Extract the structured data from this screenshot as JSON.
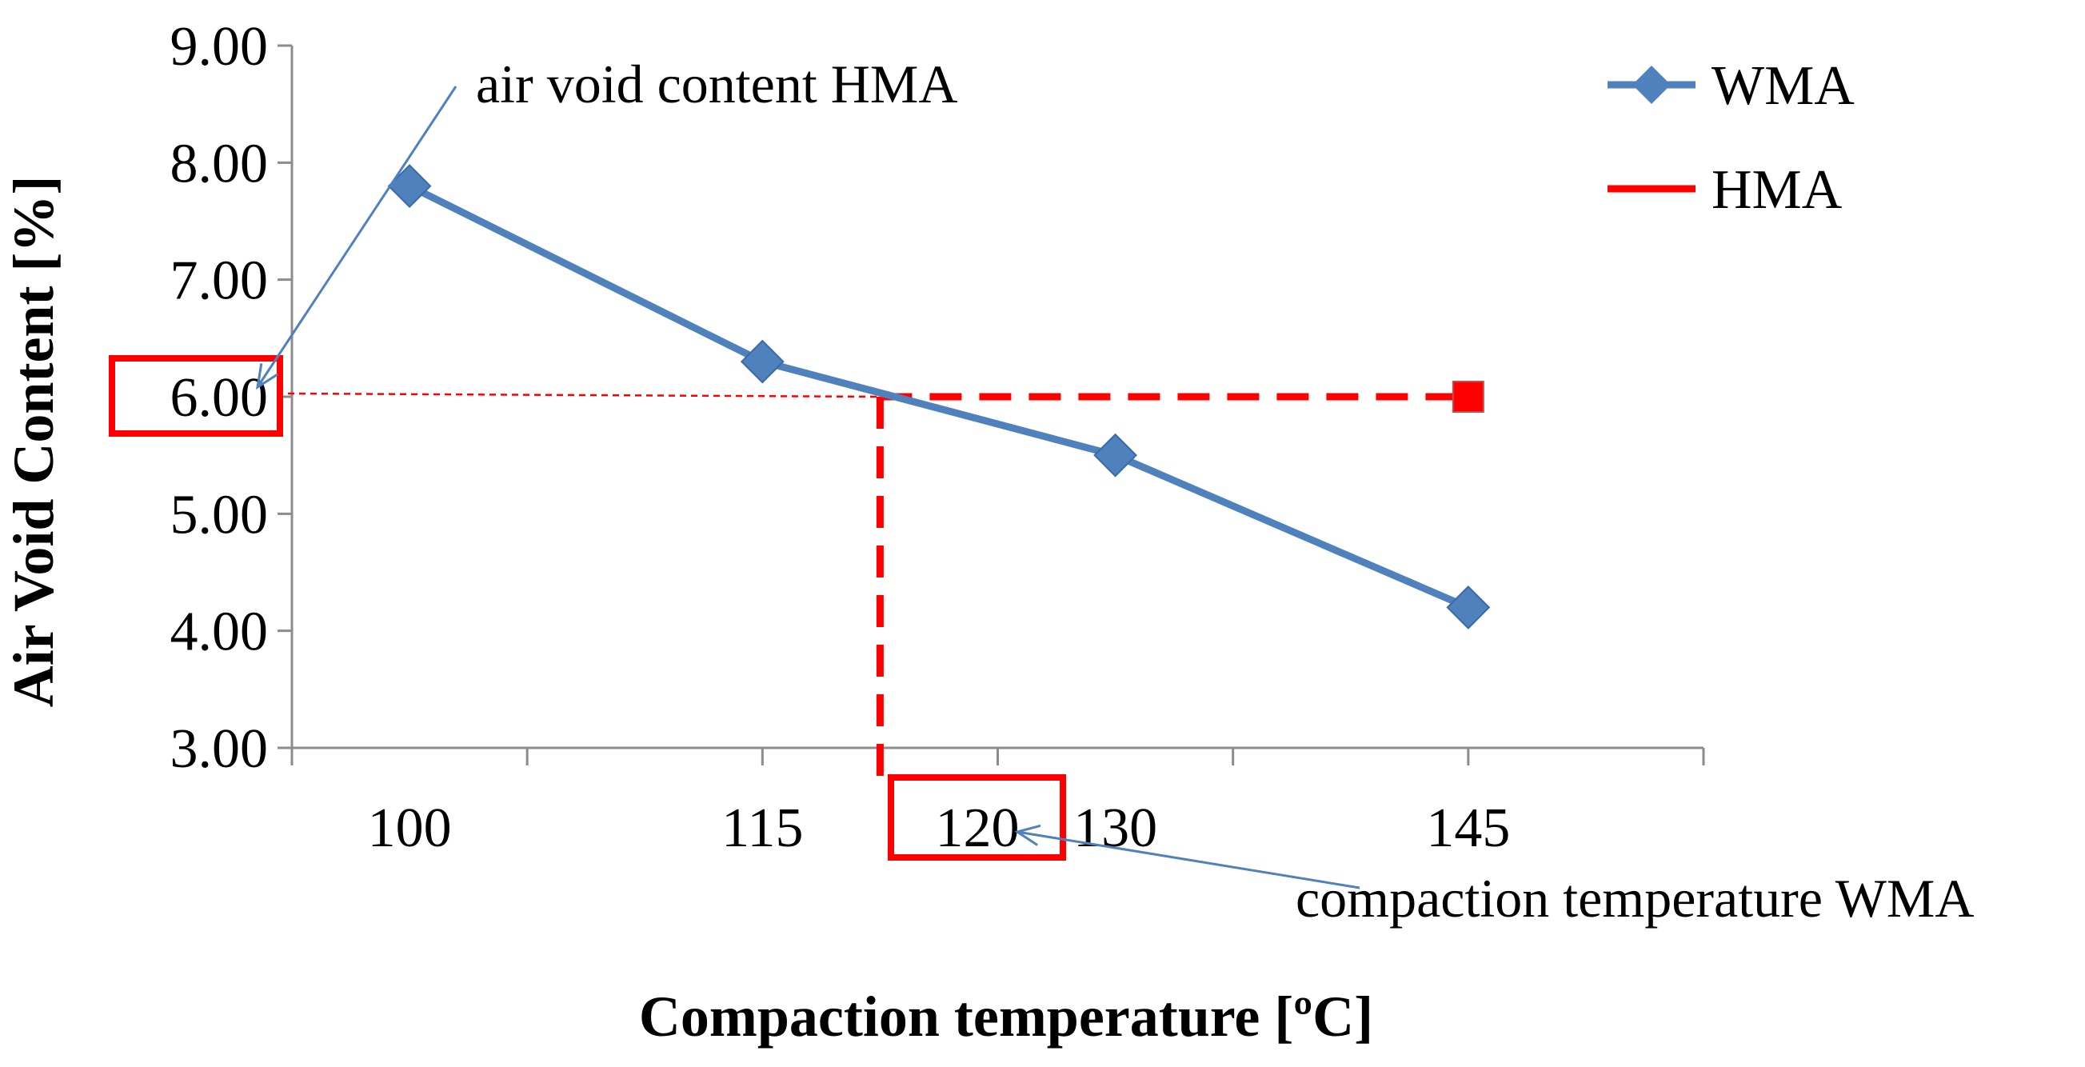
{
  "chart_data": {
    "type": "line",
    "title": "",
    "xlabel": "Compaction temperature [ºC]",
    "ylabel": "Air Void Content [%]",
    "ylim": [
      3.0,
      9.0
    ],
    "y_ticks": [
      "3.00",
      "4.00",
      "5.00",
      "6.00",
      "7.00",
      "8.00",
      "9.00"
    ],
    "categories": [
      "100",
      "115",
      "130",
      "145"
    ],
    "series": [
      {
        "name": "WMA",
        "x": [
          "100",
          "115",
          "130",
          "145"
        ],
        "values": [
          7.8,
          6.3,
          5.5,
          4.2
        ],
        "color": "#4f81bd",
        "style": "solid",
        "marker": "diamond"
      },
      {
        "name": "HMA",
        "x": [
          "145"
        ],
        "values": [
          6.0
        ],
        "color": "#ff0000",
        "style": "dashed",
        "marker": "square"
      }
    ],
    "legend": {
      "position": "top-right",
      "entries": [
        "WMA",
        "HMA"
      ]
    },
    "annotations": {
      "air_void_label": "air void content HMA",
      "air_void_value": "6.00",
      "compaction_label": "compaction temperature WMA",
      "compaction_value": "120"
    }
  }
}
